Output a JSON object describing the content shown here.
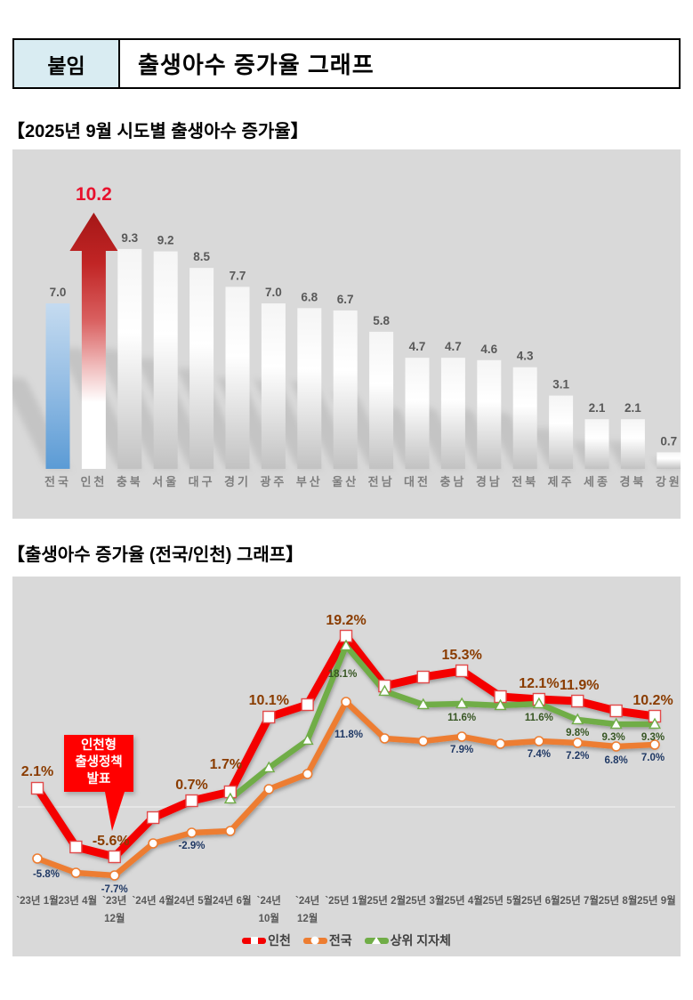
{
  "header": {
    "badge": "붙임",
    "title": "출생아수 증가율 그래프",
    "badge_bg": "#d9ecf2"
  },
  "sections": [
    {
      "title": "【2025년 9월 시도별 출생아수 증가율】"
    },
    {
      "title": "【출생아수 증가율 (전국/인천) 그래프】"
    }
  ],
  "colors": {
    "panel_bg": "#d9d9d9",
    "bar_value_label": "#595959",
    "bar_category_label": "#7e7e7e",
    "arrow_value_label": "#e8112d",
    "national_bar_blue": "#5b9bd5",
    "incheon_red": "#f40000",
    "nationwide_orange": "#ed7d31",
    "upper_gov_green": "#70ad47"
  },
  "chart_data": [
    {
      "type": "bar",
      "title": "2025년 9월 시도별 출생아수 증가율",
      "categories": [
        "전국",
        "인천",
        "충북",
        "서울",
        "대구",
        "경기",
        "광주",
        "부산",
        "울산",
        "전남",
        "대전",
        "충남",
        "경남",
        "전북",
        "제주",
        "세종",
        "경북",
        "강원"
      ],
      "values": [
        7.0,
        10.2,
        9.3,
        9.2,
        8.5,
        7.7,
        7.0,
        6.8,
        6.7,
        5.8,
        4.7,
        4.7,
        4.6,
        4.3,
        3.1,
        2.1,
        2.1,
        0.7
      ],
      "xlabel": "",
      "ylabel": "",
      "ylim": [
        0,
        12
      ],
      "grid": false,
      "special_bars": {
        "blue_gradient_bar": "전국",
        "red_arrow_bar": "인천"
      },
      "arrow_value_text": "10.2"
    },
    {
      "type": "line",
      "title": "출생아수 증가율 (전국/인천) 그래프",
      "x": [
        "`23년 1월",
        "`23년 4월",
        "`23년\n12월",
        "`24년 4월",
        "`24년 5월",
        "`24년 6월",
        "`24년\n10월",
        "`24년\n12월",
        "`25년 1월",
        "`25년 2월",
        "`25년 3월",
        "`25년 4월",
        "`25년 5월",
        "`25년 6월",
        "`25년 7월",
        "`25년 8월",
        "`25년 9월"
      ],
      "ylim": [
        -10,
        22
      ],
      "grid": false,
      "zero_line": true,
      "legend_position": "bottom",
      "series": [
        {
          "name": "인천",
          "color": "#f40000",
          "marker": "square",
          "label_color": "#8a3c00",
          "label_size": 16,
          "values": [
            2.1,
            -4.5,
            -5.6,
            -1.2,
            0.7,
            1.7,
            10.1,
            11.5,
            19.2,
            13.6,
            14.6,
            15.3,
            12.4,
            12.1,
            11.9,
            10.8,
            10.2
          ],
          "labels": [
            {
              "i": 0,
              "t": "2.1%",
              "dx": 0,
              "dy": -14
            },
            {
              "i": 2,
              "t": "-5.6%",
              "dx": -4,
              "dy": -13
            },
            {
              "i": 4,
              "t": "0.7%",
              "dx": 0,
              "dy": -13
            },
            {
              "i": 5,
              "t": "1.7%",
              "dx": -5,
              "dy": -26
            },
            {
              "i": 6,
              "t": "10.1%",
              "dx": 0,
              "dy": -14
            },
            {
              "i": 8,
              "t": "19.2%",
              "dx": 0,
              "dy": -13
            },
            {
              "i": 11,
              "t": "15.3%",
              "dx": 0,
              "dy": -13
            },
            {
              "i": 13,
              "t": "12.1%",
              "dx": 0,
              "dy": -13
            },
            {
              "i": 14,
              "t": "11.9%",
              "dx": 2,
              "dy": -13
            },
            {
              "i": 16,
              "t": "10.2%",
              "dx": -2,
              "dy": -13
            }
          ]
        },
        {
          "name": "전국",
          "color": "#ed7d31",
          "marker": "circle",
          "label_color": "#1f3864",
          "label_size": 11.5,
          "values": [
            -5.8,
            -7.4,
            -7.7,
            -4.1,
            -2.9,
            -2.7,
            2.0,
            3.7,
            11.8,
            7.7,
            7.4,
            7.9,
            7.1,
            7.4,
            7.2,
            6.8,
            7.0
          ],
          "labels": [
            {
              "i": 0,
              "t": "-5.8%",
              "dx": 10,
              "dy": 21
            },
            {
              "i": 2,
              "t": "-7.7%",
              "dx": 0,
              "dy": 19
            },
            {
              "i": 4,
              "t": "-2.9%",
              "dx": 0,
              "dy": 18
            },
            {
              "i": 8,
              "t": "11.8%",
              "dx": 3,
              "dy": 40
            },
            {
              "i": 11,
              "t": "7.9%",
              "dx": 0,
              "dy": 18
            },
            {
              "i": 13,
              "t": "7.4%",
              "dx": 0,
              "dy": 18
            },
            {
              "i": 14,
              "t": "7.2%",
              "dx": 0,
              "dy": 18
            },
            {
              "i": 15,
              "t": "6.8%",
              "dx": 0,
              "dy": 19
            },
            {
              "i": 16,
              "t": "7.0%",
              "dx": -2,
              "dy": 18
            }
          ]
        },
        {
          "name": "상위 지자체",
          "color": "#70ad47",
          "marker": "triangle",
          "label_color": "#375623",
          "label_size": 11.5,
          "values": [
            null,
            null,
            null,
            null,
            null,
            0.9,
            4.4,
            7.5,
            18.1,
            13.0,
            11.5,
            11.6,
            11.4,
            11.6,
            9.8,
            9.3,
            9.3
          ],
          "labels": [
            {
              "i": 8,
              "t": "18.1%",
              "dx": -4,
              "dy": 35
            },
            {
              "i": 11,
              "t": "11.6%",
              "dx": 0,
              "dy": 19
            },
            {
              "i": 13,
              "t": "11.6%",
              "dx": 0,
              "dy": 19
            },
            {
              "i": 14,
              "t": "9.8%",
              "dx": 0,
              "dy": 18
            },
            {
              "i": 15,
              "t": "9.3%",
              "dx": -3,
              "dy": 18
            },
            {
              "i": 16,
              "t": "9.3%",
              "dx": -2,
              "dy": 18
            }
          ]
        }
      ],
      "annotation": {
        "text_lines": [
          "인천형",
          "출생정책",
          "발표"
        ],
        "bg": "#ff0000",
        "text_color": "#ffffff",
        "points_to": "`23년 12월"
      },
      "legend": [
        "인천",
        "전국",
        "상위 지자체"
      ]
    }
  ]
}
